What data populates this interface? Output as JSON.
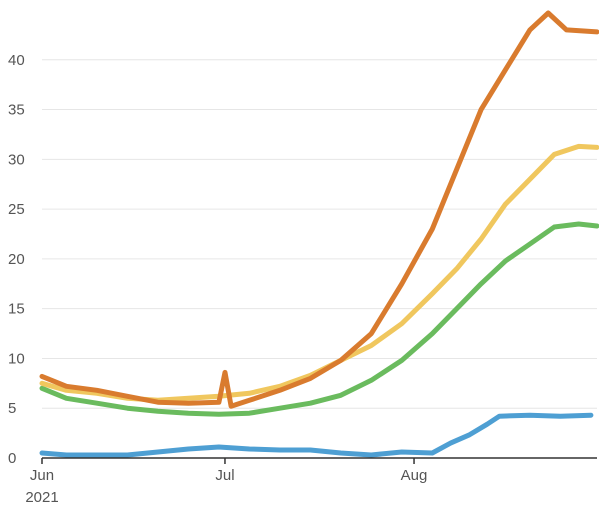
{
  "chart_data": {
    "type": "line",
    "title": "",
    "xlabel": "",
    "ylabel": "",
    "ylim": [
      0,
      45
    ],
    "yticks": [
      0,
      5,
      10,
      15,
      20,
      25,
      30,
      35,
      40
    ],
    "xlim": [
      "2021-06-01",
      "2021-08-31"
    ],
    "xticks": [
      {
        "date": "2021-06-01",
        "label": "Jun",
        "sublabel": "2021"
      },
      {
        "date": "2021-07-01",
        "label": "Jul",
        "sublabel": ""
      },
      {
        "date": "2021-08-01",
        "label": "Aug",
        "sublabel": ""
      }
    ],
    "grid": "horizontal",
    "series": [
      {
        "color": "#4e9fd3",
        "points": [
          [
            "2021-06-01",
            0.5
          ],
          [
            "2021-06-05",
            0.3
          ],
          [
            "2021-06-10",
            0.3
          ],
          [
            "2021-06-15",
            0.3
          ],
          [
            "2021-06-20",
            0.6
          ],
          [
            "2021-06-25",
            0.9
          ],
          [
            "2021-06-30",
            1.1
          ],
          [
            "2021-07-05",
            0.9
          ],
          [
            "2021-07-10",
            0.8
          ],
          [
            "2021-07-15",
            0.8
          ],
          [
            "2021-07-20",
            0.5
          ],
          [
            "2021-07-25",
            0.3
          ],
          [
            "2021-07-30",
            0.6
          ],
          [
            "2021-08-04",
            0.5
          ],
          [
            "2021-08-07",
            1.5
          ],
          [
            "2021-08-10",
            2.3
          ],
          [
            "2021-08-13",
            3.4
          ],
          [
            "2021-08-15",
            4.2
          ],
          [
            "2021-08-20",
            4.3
          ],
          [
            "2021-08-25",
            4.2
          ],
          [
            "2021-08-30",
            4.3
          ]
        ]
      },
      {
        "color": "#6abb5e",
        "points": [
          [
            "2021-06-01",
            7.0
          ],
          [
            "2021-06-05",
            6.0
          ],
          [
            "2021-06-10",
            5.5
          ],
          [
            "2021-06-15",
            5.0
          ],
          [
            "2021-06-20",
            4.7
          ],
          [
            "2021-06-25",
            4.5
          ],
          [
            "2021-06-30",
            4.4
          ],
          [
            "2021-07-05",
            4.5
          ],
          [
            "2021-07-10",
            5.0
          ],
          [
            "2021-07-15",
            5.5
          ],
          [
            "2021-07-20",
            6.3
          ],
          [
            "2021-07-25",
            7.8
          ],
          [
            "2021-07-30",
            9.8
          ],
          [
            "2021-08-04",
            12.5
          ],
          [
            "2021-08-08",
            15.0
          ],
          [
            "2021-08-12",
            17.5
          ],
          [
            "2021-08-16",
            19.8
          ],
          [
            "2021-08-20",
            21.5
          ],
          [
            "2021-08-24",
            23.2
          ],
          [
            "2021-08-28",
            23.5
          ],
          [
            "2021-08-31",
            23.3
          ]
        ]
      },
      {
        "color": "#f0c75e",
        "points": [
          [
            "2021-06-01",
            7.5
          ],
          [
            "2021-06-05",
            6.8
          ],
          [
            "2021-06-10",
            6.5
          ],
          [
            "2021-06-15",
            6.0
          ],
          [
            "2021-06-20",
            5.8
          ],
          [
            "2021-06-25",
            6.0
          ],
          [
            "2021-06-30",
            6.2
          ],
          [
            "2021-07-05",
            6.5
          ],
          [
            "2021-07-10",
            7.2
          ],
          [
            "2021-07-15",
            8.3
          ],
          [
            "2021-07-20",
            9.8
          ],
          [
            "2021-07-25",
            11.3
          ],
          [
            "2021-07-30",
            13.5
          ],
          [
            "2021-08-04",
            16.5
          ],
          [
            "2021-08-08",
            19.0
          ],
          [
            "2021-08-12",
            22.0
          ],
          [
            "2021-08-16",
            25.5
          ],
          [
            "2021-08-20",
            28.0
          ],
          [
            "2021-08-24",
            30.5
          ],
          [
            "2021-08-28",
            31.3
          ],
          [
            "2021-08-31",
            31.2
          ]
        ]
      },
      {
        "color": "#d97b2e",
        "points": [
          [
            "2021-06-01",
            8.2
          ],
          [
            "2021-06-05",
            7.2
          ],
          [
            "2021-06-10",
            6.8
          ],
          [
            "2021-06-15",
            6.2
          ],
          [
            "2021-06-20",
            5.6
          ],
          [
            "2021-06-25",
            5.5
          ],
          [
            "2021-06-30",
            5.6
          ],
          [
            "2021-07-01",
            8.6
          ],
          [
            "2021-07-02",
            5.2
          ],
          [
            "2021-07-05",
            5.8
          ],
          [
            "2021-07-10",
            6.8
          ],
          [
            "2021-07-15",
            8.0
          ],
          [
            "2021-07-20",
            9.8
          ],
          [
            "2021-07-25",
            12.5
          ],
          [
            "2021-07-30",
            17.5
          ],
          [
            "2021-08-04",
            23.0
          ],
          [
            "2021-08-08",
            29.0
          ],
          [
            "2021-08-12",
            35.0
          ],
          [
            "2021-08-16",
            39.0
          ],
          [
            "2021-08-20",
            43.0
          ],
          [
            "2021-08-23",
            44.7
          ],
          [
            "2021-08-26",
            43.0
          ],
          [
            "2021-08-31",
            42.8
          ]
        ]
      }
    ]
  }
}
